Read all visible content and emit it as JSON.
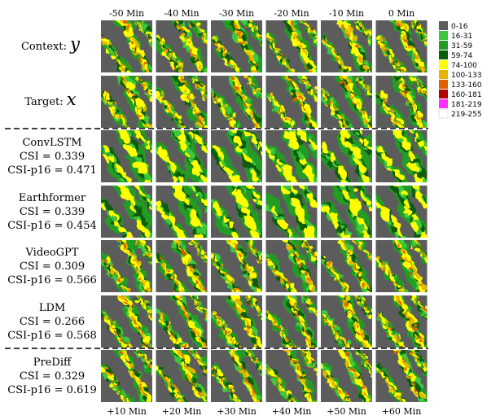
{
  "columns_top": [
    "-50 Min",
    "-40 Min",
    "-30 Min",
    "-20 Min",
    "-10 Min",
    "0 Min"
  ],
  "columns_bottom": [
    "+10 Min",
    "+20 Min",
    "+30 Min",
    "+40 Min",
    "+50 Min",
    "+60 Min"
  ],
  "rows": [
    {
      "id": "context",
      "label": "Context:",
      "symbol": "y",
      "metrics": []
    },
    {
      "id": "target",
      "label": "Target:",
      "symbol": "x",
      "metrics": []
    },
    {
      "id": "convlstm",
      "label": "ConvLSTM",
      "symbol": "",
      "metrics": [
        "CSI = 0.339",
        "CSI-p16 = 0.471"
      ]
    },
    {
      "id": "earthformer",
      "label": "Earthformer",
      "symbol": "",
      "metrics": [
        "CSI = 0.339",
        "CSI-p16 = 0.454"
      ]
    },
    {
      "id": "videogpt",
      "label": "VideoGPT",
      "symbol": "",
      "metrics": [
        "CSI = 0.309",
        "CSI-p16 = 0.566"
      ]
    },
    {
      "id": "ldm",
      "label": "LDM",
      "symbol": "",
      "metrics": [
        "CSI = 0.266",
        "CSI-p16 = 0.568"
      ]
    },
    {
      "id": "prediff",
      "label": "PreDiff",
      "symbol": "",
      "metrics": [
        "CSI = 0.329",
        "CSI-p16 = 0.619"
      ]
    }
  ],
  "legend": [
    {
      "label": "0-16",
      "color": "#5c5c5c"
    },
    {
      "label": "16-31",
      "color": "#3cc83c"
    },
    {
      "label": "31-59",
      "color": "#249c24"
    },
    {
      "label": "59-74",
      "color": "#0a5c0a"
    },
    {
      "label": "74-100",
      "color": "#ffff00"
    },
    {
      "label": "100-133",
      "color": "#e8b400"
    },
    {
      "label": "133-160",
      "color": "#e06000"
    },
    {
      "label": "160-181",
      "color": "#b00000"
    },
    {
      "label": "181-219",
      "color": "#ff30ff"
    },
    {
      "label": "219-255",
      "color": "#ffffff"
    }
  ],
  "panel_background": "#5c5c5c"
}
